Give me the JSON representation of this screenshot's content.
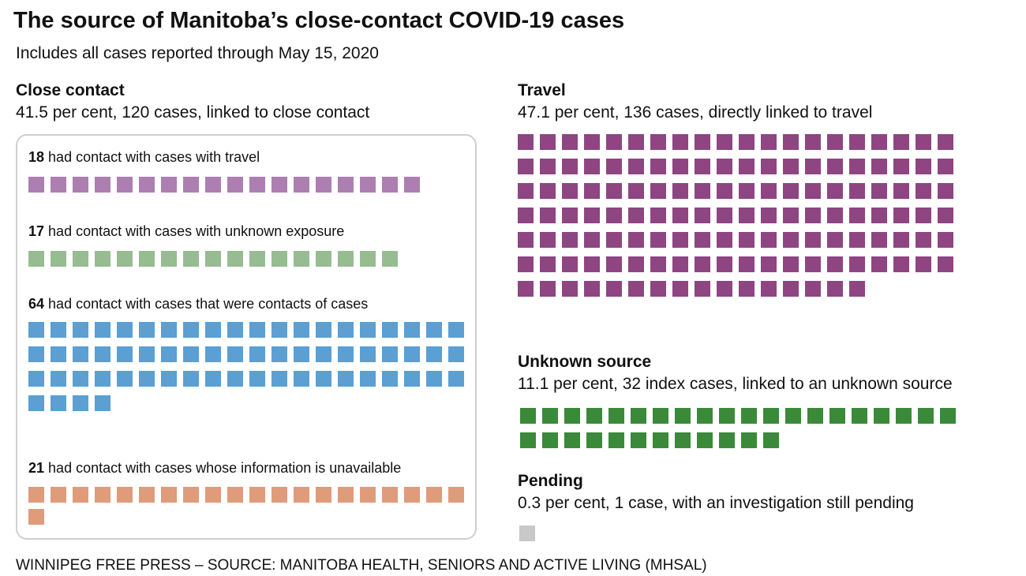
{
  "title": "The source of Manitoba’s close-contact COVID-19 cases",
  "subtitle": "Includes all cases reported through May 15, 2020",
  "footer": "WINNIPEG FREE PRESS – SOURCE: MANITOBA HEALTH, SENIORS AND ACTIVE LIVING (MHSAL)",
  "chart_data": {
    "type": "waffle",
    "sections": [
      {
        "key": "close_contact",
        "heading": "Close contact",
        "description": "41.5 per cent, 120 cases, linked to close contact",
        "percent": 41.5,
        "cases": 120,
        "groups": [
          {
            "key": "travel_contacts",
            "count": 18,
            "count_label": "18",
            "label": "had contact with cases with travel",
            "color": "#ad7fb0"
          },
          {
            "key": "unknown_exposure",
            "count": 17,
            "count_label": "17",
            "label": "had contact with cases with unknown exposure",
            "color": "#97bc92"
          },
          {
            "key": "contacts_of_cases",
            "count": 64,
            "count_label": "64",
            "label": "had contact with cases that were contacts of cases",
            "color": "#5b9fd3"
          },
          {
            "key": "info_unavailable",
            "count": 21,
            "count_label": "21",
            "label": "had contact with cases whose information is unavailable",
            "color": "#e09b7b"
          }
        ]
      },
      {
        "key": "travel",
        "heading": "Travel",
        "description": "47.1 per cent, 136 cases, directly linked to travel",
        "percent": 47.1,
        "count": 136,
        "color": "#8e4582"
      },
      {
        "key": "unknown_source",
        "heading": "Unknown source",
        "description": "11.1 per cent, 32 index cases, linked to an unknown source",
        "percent": 11.1,
        "count": 32,
        "color": "#3a8a3a"
      },
      {
        "key": "pending",
        "heading": "Pending",
        "description": "0.3 per cent, 1 case, with an investigation still pending",
        "percent": 0.3,
        "count": 1,
        "color": "#c8c8c8"
      }
    ]
  }
}
